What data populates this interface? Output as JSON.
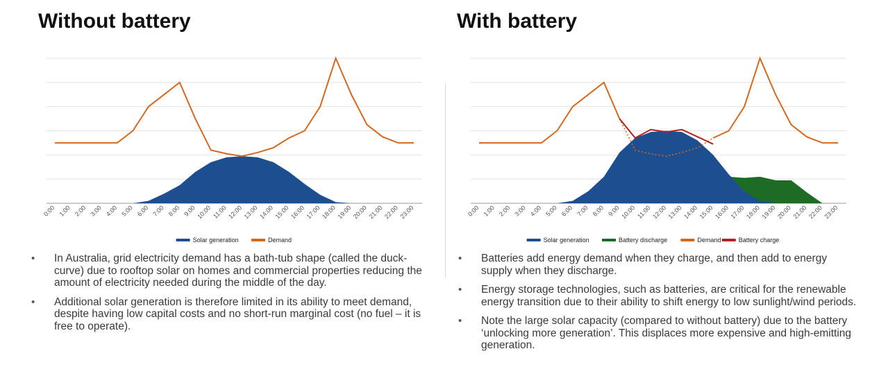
{
  "left_panel": {
    "title": "Without battery",
    "bullets": [
      "In Australia, grid electricity demand has a bath-tub shape (called the duck-curve) due to rooftop solar on homes and commercial properties reducing the amount of electricity needed during the middle of the day.",
      "Additional solar generation is therefore limited in its ability to meet demand, despite having low capital costs and no short-run marginal cost (no fuel – it is free to operate)."
    ]
  },
  "right_panel": {
    "title": "With battery",
    "bullets": [
      "Batteries add energy demand when they charge, and then add to energy supply when they discharge.",
      "Energy storage technologies, such as batteries, are critical for the renewable energy transition due to their ability to shift energy to low sunlight/wind periods.",
      "Note the large solar capacity (compared to without battery) due to the battery ‘unlocking more generation’. This displaces more expensive and high-emitting generation."
    ]
  },
  "chart_data": [
    {
      "type": "area",
      "title": "",
      "xlabel": "",
      "ylabel": "",
      "categories": [
        "0:00",
        "1:00",
        "2:00",
        "3:00",
        "4:00",
        "5:00",
        "6:00",
        "7:00",
        "8:00",
        "9:00",
        "10:00",
        "11:00",
        "12:00",
        "13:00",
        "14:00",
        "15:00",
        "16:00",
        "17:00",
        "18:00",
        "19:00",
        "20:00",
        "21:00",
        "22:00",
        "23:00"
      ],
      "ylim": [
        0,
        6
      ],
      "grid": true,
      "legend": "bottom",
      "series": [
        {
          "name": "Solar generation",
          "kind": "area",
          "color": "#1d4e8f",
          "values": [
            0,
            0,
            0,
            0,
            0,
            0,
            0.1,
            0.4,
            0.75,
            1.3,
            1.7,
            1.9,
            1.95,
            1.9,
            1.7,
            1.3,
            0.8,
            0.35,
            0.05,
            0,
            0,
            0,
            0,
            0
          ]
        },
        {
          "name": "Demand",
          "kind": "line",
          "color": "#d2691e",
          "values": [
            2.5,
            2.5,
            2.5,
            2.5,
            2.5,
            3.0,
            4.0,
            4.5,
            5.0,
            3.5,
            2.2,
            2.05,
            1.95,
            2.1,
            2.3,
            2.7,
            3.0,
            4.0,
            6.0,
            4.5,
            3.25,
            2.75,
            2.5,
            2.5
          ]
        }
      ]
    },
    {
      "type": "area",
      "title": "",
      "xlabel": "",
      "ylabel": "",
      "categories": [
        "0:00",
        "1:00",
        "2:00",
        "3:00",
        "4:00",
        "5:00",
        "6:00",
        "7:00",
        "8:00",
        "9:00",
        "10:00",
        "11:00",
        "12:00",
        "13:00",
        "14:00",
        "15:00",
        "16:00",
        "17:00",
        "18:00",
        "19:00",
        "20:00",
        "21:00",
        "22:00",
        "23:00"
      ],
      "ylim": [
        0,
        6
      ],
      "grid": true,
      "legend": "bottom",
      "series": [
        {
          "name": "Solar generation",
          "kind": "area",
          "color": "#1d4e8f",
          "values": [
            0,
            0,
            0,
            0,
            0,
            0,
            0.1,
            0.5,
            1.1,
            2.1,
            2.7,
            2.95,
            3.0,
            2.95,
            2.6,
            2.0,
            1.2,
            0.5,
            0.1,
            0,
            0,
            0,
            0,
            0
          ]
        },
        {
          "name": "Battery discharge",
          "kind": "area",
          "color": "#1e6b24",
          "values": [
            null,
            null,
            null,
            null,
            null,
            null,
            null,
            null,
            null,
            null,
            null,
            null,
            null,
            null,
            null,
            null,
            1.1,
            1.05,
            1.1,
            0.95,
            0.95,
            0.45,
            0,
            null
          ]
        },
        {
          "name": "Demand",
          "kind": "line",
          "color": "#d2691e",
          "values": [
            2.5,
            2.5,
            2.5,
            2.5,
            2.5,
            3.0,
            4.0,
            4.5,
            5.0,
            3.5,
            2.2,
            2.05,
            1.95,
            2.1,
            2.3,
            2.7,
            3.0,
            4.0,
            6.0,
            4.5,
            3.25,
            2.75,
            2.5,
            2.5
          ]
        },
        {
          "name": "Battery charge",
          "kind": "line",
          "color": "#b22222",
          "values": [
            null,
            null,
            null,
            null,
            null,
            null,
            null,
            null,
            null,
            3.5,
            2.7,
            3.05,
            2.95,
            3.05,
            2.75,
            2.45,
            null,
            null,
            null,
            null,
            null,
            null,
            null,
            null
          ]
        }
      ]
    }
  ]
}
